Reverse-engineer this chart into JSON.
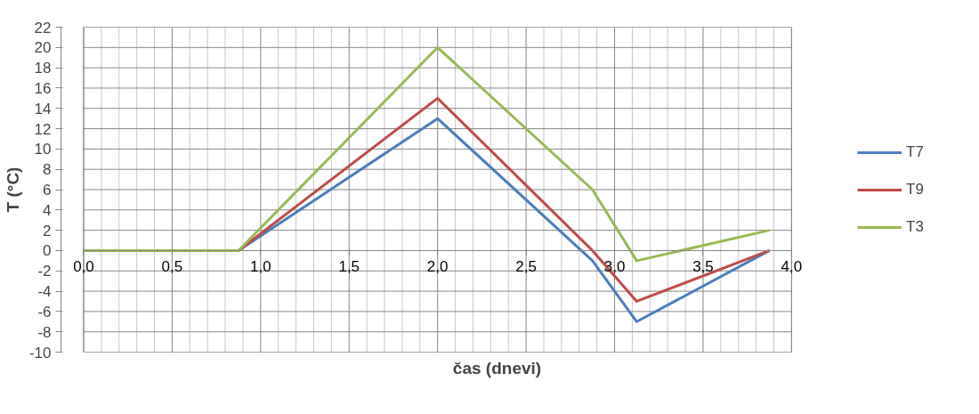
{
  "chart_data": {
    "type": "line",
    "xlabel": "čas (dnevi)",
    "ylabel": "T (°C)",
    "x": [
      0,
      0.875,
      2,
      2.875,
      3.125,
      3.875
    ],
    "series": [
      {
        "name": "T7",
        "color": "#4a7ebb",
        "values": [
          0,
          0,
          13,
          -1,
          -7,
          0
        ]
      },
      {
        "name": "T9",
        "color": "#be4b48",
        "values": [
          0,
          0,
          15,
          0,
          -5,
          0
        ]
      },
      {
        "name": "T3",
        "color": "#98b954",
        "values": [
          0,
          0,
          20,
          6,
          -1,
          2
        ]
      }
    ],
    "xlim": [
      0,
      4
    ],
    "ylim": [
      -10,
      22
    ],
    "xticks": [
      {
        "value": 0,
        "label": "0,0"
      },
      {
        "value": 0.5,
        "label": "0,5"
      },
      {
        "value": 1,
        "label": "1,0"
      },
      {
        "value": 1.5,
        "label": "1,5"
      },
      {
        "value": 2,
        "label": "2,0"
      },
      {
        "value": 2.5,
        "label": "2,5"
      },
      {
        "value": 3,
        "label": "3,0"
      },
      {
        "value": 3.5,
        "label": "3,5"
      },
      {
        "value": 4,
        "label": "4,0"
      }
    ],
    "yticks": [
      -10,
      -8,
      -6,
      -4,
      -2,
      0,
      2,
      4,
      6,
      8,
      10,
      12,
      14,
      16,
      18,
      20,
      22
    ],
    "grid": true,
    "legend": "right",
    "marker": "none",
    "line_style": "solid"
  }
}
